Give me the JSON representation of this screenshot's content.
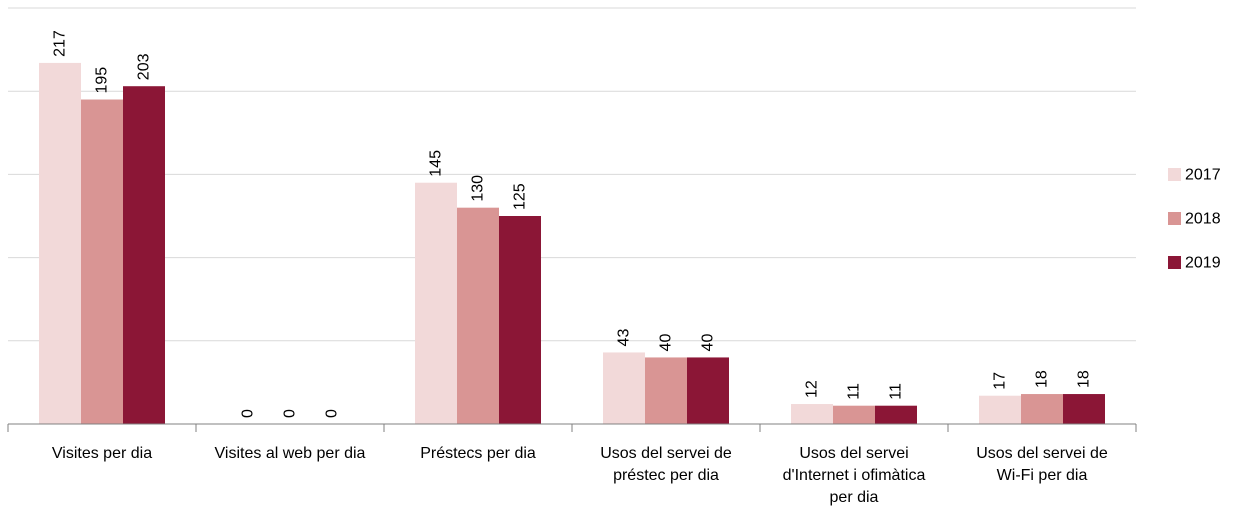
{
  "chart_data": {
    "type": "bar",
    "title": "",
    "xlabel": "",
    "ylabel": "",
    "ylim": [
      0,
      250
    ],
    "grid": true,
    "legend_position": "right",
    "categories": [
      [
        "Visites per dia"
      ],
      [
        "Visites al web per dia"
      ],
      [
        "Préstecs per dia"
      ],
      [
        "Usos del servei de",
        "préstec per dia"
      ],
      [
        "Usos del servei",
        "d'Internet i ofimàtica",
        "per dia"
      ],
      [
        "Usos del servei de",
        "Wi-Fi per dia"
      ]
    ],
    "series": [
      {
        "name": "2017",
        "color": "#f2d9d9",
        "values": [
          217,
          0,
          145,
          43,
          12,
          17
        ]
      },
      {
        "name": "2018",
        "color": "#d99594",
        "values": [
          195,
          0,
          130,
          40,
          11,
          18
        ]
      },
      {
        "name": "2019",
        "color": "#8b1636",
        "values": [
          203,
          0,
          125,
          40,
          11,
          18
        ]
      }
    ]
  }
}
